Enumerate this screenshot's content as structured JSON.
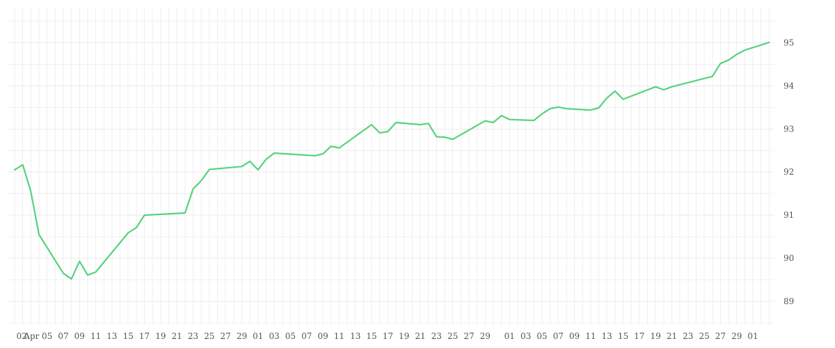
{
  "chart_data": {
    "type": "line",
    "title": "",
    "xlabel": "",
    "ylabel": "",
    "ylim": [
      88.45,
      95.8
    ],
    "y_ticks": [
      89,
      90,
      91,
      92,
      93,
      94,
      95
    ],
    "y_axis_side": "right",
    "grid": true,
    "legend": "none",
    "x_tick_labels": [
      "02",
      "Apr",
      "05",
      "07",
      "09",
      "11",
      "13",
      "15",
      "17",
      "19",
      "21",
      "23",
      "25",
      "27",
      "29",
      "01",
      "03",
      "05",
      "07",
      "09",
      "11",
      "13",
      "15",
      "17",
      "19",
      "21",
      "23",
      "25",
      "27",
      "29",
      "01",
      "03",
      "05",
      "07",
      "09",
      "11",
      "13",
      "15",
      "17",
      "19",
      "21",
      "23",
      "25",
      "27",
      "29",
      "01"
    ],
    "x_tick_dates": [
      "2024-04-02",
      "2024-04-03",
      "2024-04-05",
      "2024-04-07",
      "2024-04-09",
      "2024-04-11",
      "2024-04-13",
      "2024-04-15",
      "2024-04-17",
      "2024-04-19",
      "2024-04-21",
      "2024-04-23",
      "2024-04-25",
      "2024-04-27",
      "2024-04-29",
      "2024-05-01",
      "2024-05-03",
      "2024-05-05",
      "2024-05-07",
      "2024-05-09",
      "2024-05-11",
      "2024-05-13",
      "2024-05-15",
      "2024-05-17",
      "2024-05-19",
      "2024-05-21",
      "2024-05-23",
      "2024-05-25",
      "2024-05-27",
      "2024-05-29",
      "2024-06-01",
      "2024-06-03",
      "2024-06-05",
      "2024-06-07",
      "2024-06-09",
      "2024-06-11",
      "2024-06-13",
      "2024-06-15",
      "2024-06-17",
      "2024-06-19",
      "2024-06-21",
      "2024-06-23",
      "2024-06-25",
      "2024-06-27",
      "2024-06-29",
      "2024-07-01"
    ],
    "series": [
      {
        "color": "#55d27e",
        "points": [
          [
            "2024-04-01",
            92.05
          ],
          [
            "2024-04-02",
            92.17
          ],
          [
            "2024-04-03",
            91.55
          ],
          [
            "2024-04-04",
            90.55
          ],
          [
            "2024-04-07",
            89.65
          ],
          [
            "2024-04-08",
            89.52
          ],
          [
            "2024-04-09",
            89.93
          ],
          [
            "2024-04-10",
            89.61
          ],
          [
            "2024-04-11",
            89.68
          ],
          [
            "2024-04-15",
            90.59
          ],
          [
            "2024-04-16",
            90.71
          ],
          [
            "2024-04-17",
            91.0
          ],
          [
            "2024-04-22",
            91.05
          ],
          [
            "2024-04-23",
            91.61
          ],
          [
            "2024-04-24",
            91.8
          ],
          [
            "2024-04-25",
            92.06
          ],
          [
            "2024-04-29",
            92.13
          ],
          [
            "2024-04-30",
            92.25
          ],
          [
            "2024-05-01",
            92.05
          ],
          [
            "2024-05-02",
            92.3
          ],
          [
            "2024-05-03",
            92.44
          ],
          [
            "2024-05-08",
            92.38
          ],
          [
            "2024-05-09",
            92.42
          ],
          [
            "2024-05-10",
            92.6
          ],
          [
            "2024-05-11",
            92.56
          ],
          [
            "2024-05-15",
            93.1
          ],
          [
            "2024-05-16",
            92.91
          ],
          [
            "2024-05-17",
            92.94
          ],
          [
            "2024-05-18",
            93.15
          ],
          [
            "2024-05-21",
            93.1
          ],
          [
            "2024-05-22",
            93.13
          ],
          [
            "2024-05-23",
            92.82
          ],
          [
            "2024-05-24",
            92.81
          ],
          [
            "2024-05-25",
            92.76
          ],
          [
            "2024-05-29",
            93.19
          ],
          [
            "2024-05-30",
            93.15
          ],
          [
            "2024-05-31",
            93.31
          ],
          [
            "2024-06-01",
            93.22
          ],
          [
            "2024-06-04",
            93.2
          ],
          [
            "2024-06-05",
            93.35
          ],
          [
            "2024-06-06",
            93.47
          ],
          [
            "2024-06-07",
            93.51
          ],
          [
            "2024-06-08",
            93.47
          ],
          [
            "2024-06-11",
            93.44
          ],
          [
            "2024-06-12",
            93.49
          ],
          [
            "2024-06-13",
            93.72
          ],
          [
            "2024-06-14",
            93.88
          ],
          [
            "2024-06-15",
            93.69
          ],
          [
            "2024-06-19",
            93.98
          ],
          [
            "2024-06-20",
            93.91
          ],
          [
            "2024-06-21",
            93.98
          ],
          [
            "2024-06-26",
            94.22
          ],
          [
            "2024-06-27",
            94.52
          ],
          [
            "2024-06-28",
            94.6
          ],
          [
            "2024-06-29",
            94.73
          ],
          [
            "2024-06-30",
            94.83
          ],
          [
            "2024-07-03",
            95.01
          ]
        ]
      }
    ]
  }
}
